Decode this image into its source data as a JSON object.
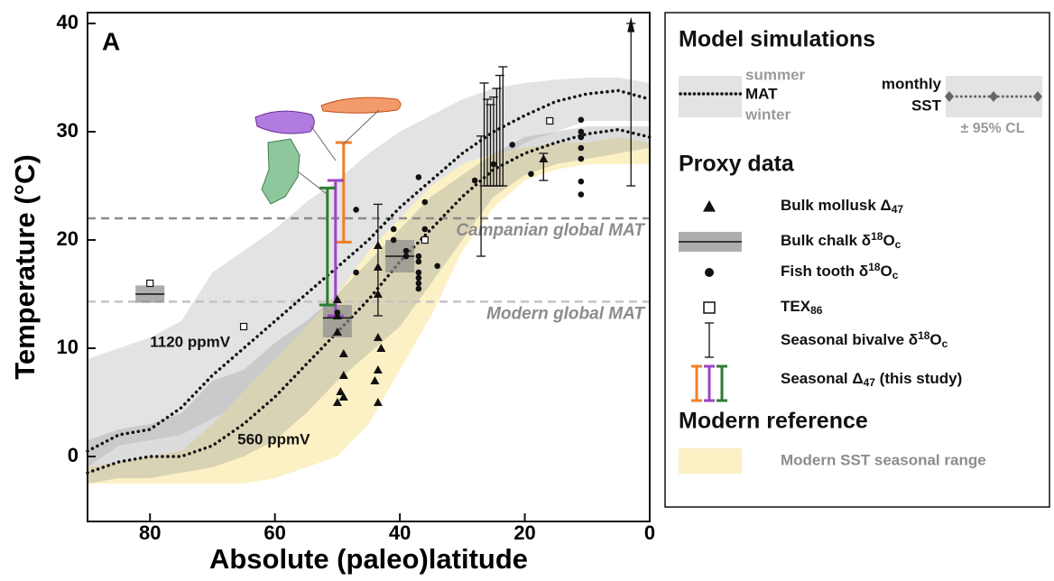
{
  "chart_data": {
    "type": "line",
    "panel_label": "A",
    "xlabel": "Absolute (paleo)latitude",
    "ylabel": "Temperature (°C)",
    "xlim": [
      90,
      0
    ],
    "ylim": [
      -6,
      41
    ],
    "xticks": [
      80,
      60,
      40,
      20,
      0
    ],
    "yticks": [
      0,
      10,
      20,
      30,
      40
    ],
    "bands": [
      {
        "color": "#e3e3e3",
        "opacity": 1,
        "x": [
          90,
          85,
          80,
          75,
          70,
          65,
          60,
          55,
          50,
          45,
          40,
          35,
          30,
          25,
          20,
          15,
          10,
          5,
          0
        ],
        "upper": [
          9,
          10,
          11,
          12.5,
          17,
          19,
          21,
          23.5,
          25.5,
          28,
          30,
          31.5,
          33,
          34,
          34.5,
          34.8,
          35,
          35,
          34.5
        ],
        "lower": [
          -1,
          1,
          1.5,
          2,
          3.5,
          5,
          7,
          8,
          10,
          13,
          16,
          20,
          24,
          27,
          29,
          30,
          31,
          31,
          31
        ]
      },
      {
        "name": "Modern SST seasonal range",
        "color": "#fbf1c4",
        "opacity": 1,
        "x": [
          90,
          85,
          80,
          75,
          70,
          65,
          60,
          55,
          50,
          45,
          40,
          35,
          30,
          25,
          20,
          15,
          10,
          5,
          0
        ],
        "upper": [
          -1,
          -0.5,
          0,
          0.5,
          3,
          6,
          9,
          12,
          15,
          19,
          22,
          25,
          27,
          28,
          28.5,
          29,
          29,
          29.5,
          29
        ],
        "lower": [
          -2.5,
          -2.5,
          -2.5,
          -2.5,
          -2.5,
          -2.5,
          -2,
          -1,
          0,
          3,
          8,
          13,
          19,
          23,
          25.5,
          26.5,
          27,
          27,
          27
        ]
      },
      {
        "color": "#9a9a9a",
        "opacity": 0.35,
        "x": [
          90,
          85,
          80,
          75,
          70,
          65,
          60,
          55,
          50,
          45,
          40,
          35,
          30,
          25,
          20,
          15,
          10,
          5,
          0
        ],
        "upper": [
          1.5,
          2.5,
          3,
          4,
          7,
          8,
          10.5,
          12.5,
          15,
          18,
          21,
          24,
          26,
          28,
          29.5,
          30,
          30.5,
          30.5,
          30.5
        ],
        "lower": [
          -2.5,
          -2,
          -2,
          -1.5,
          -1,
          0,
          1.5,
          4,
          7,
          9.5,
          12,
          16,
          20,
          24,
          26,
          27,
          27.5,
          28,
          28.5
        ]
      }
    ],
    "series": [
      {
        "label": "1120 ppmV",
        "label_at": [
          80,
          10.5
        ],
        "color": "#111",
        "x": [
          90,
          85,
          80,
          75,
          70,
          65,
          60,
          55,
          50,
          45,
          40,
          35,
          30,
          25,
          20,
          15,
          10,
          5,
          0
        ],
        "values": [
          0.5,
          2,
          2.5,
          4.5,
          7.5,
          10,
          12.5,
          15,
          17.5,
          20,
          23,
          25.5,
          28,
          30,
          31.5,
          32.8,
          33.5,
          33.8,
          33
        ]
      },
      {
        "label": "560 ppmV",
        "label_at": [
          66,
          1.5
        ],
        "color": "#111",
        "x": [
          90,
          85,
          80,
          75,
          70,
          65,
          60,
          55,
          50,
          45,
          40,
          35,
          30,
          25,
          20,
          15,
          10,
          5,
          0
        ],
        "values": [
          -1.5,
          -0.5,
          0,
          0,
          1,
          3,
          5.5,
          8.5,
          11.5,
          14.5,
          18,
          21,
          24,
          26.5,
          28,
          29,
          29.8,
          30.2,
          29.5
        ]
      }
    ],
    "reference_lines": [
      {
        "label": "Campanian global MAT",
        "value": 22,
        "color": "#8c8c8c"
      },
      {
        "label": "Modern global MAT",
        "value": 14.3,
        "color": "#c4c4c4"
      }
    ],
    "proxies": {
      "mollusk": {
        "name": [
          {
            "text": "Bulk mollusk Δ"
          },
          {
            "sub": "47"
          }
        ],
        "x": [
          50,
          50,
          50,
          49,
          49,
          49.5,
          49,
          50,
          43.5,
          43.5,
          43.5,
          43.5,
          43,
          43.5,
          44,
          43.5,
          17
        ],
        "values": [
          14.5,
          13,
          11.5,
          9.5,
          7.5,
          6,
          5.5,
          5,
          19.5,
          17.5,
          15,
          11,
          10,
          8,
          7,
          5,
          27.5
        ]
      },
      "chalk": {
        "name": [
          {
            "text": "Bulk chalk δ"
          },
          {
            "sup": "18"
          },
          {
            "text": "O"
          },
          {
            "sub": "c"
          }
        ],
        "x": [
          80,
          50,
          40
        ],
        "values": [
          15,
          12.8,
          18.5
        ],
        "low": [
          14.2,
          11,
          17
        ],
        "high": [
          15.8,
          14,
          20
        ]
      },
      "fish": {
        "name": [
          {
            "text": "Fish tooth δ"
          },
          {
            "sup": "18"
          },
          {
            "text": "O"
          },
          {
            "sub": "c"
          }
        ],
        "x": [
          47,
          47,
          50,
          41,
          41,
          39,
          39,
          37,
          37,
          37,
          37,
          37,
          37,
          37,
          36,
          36,
          34,
          22,
          19,
          11,
          11,
          11,
          11,
          11,
          11,
          11,
          25,
          28
        ],
        "values": [
          22.8,
          17,
          13.3,
          21,
          20,
          19,
          18.5,
          25.8,
          18.5,
          18,
          17,
          16.5,
          16,
          15.5,
          23.5,
          21,
          17.6,
          28.8,
          26.1,
          31.1,
          30,
          29.5,
          28.5,
          27.5,
          25.4,
          24.2,
          27,
          25.5
        ]
      },
      "tex": {
        "name": [
          {
            "text": "TEX"
          },
          {
            "sub": "86"
          }
        ],
        "x": [
          80,
          65,
          36,
          16
        ],
        "values": [
          16,
          12,
          20,
          31
        ]
      },
      "bivalve": {
        "name": [
          {
            "text": "Seasonal bivalve δ"
          },
          {
            "sup": "18"
          },
          {
            "text": "O"
          },
          {
            "sub": "c"
          }
        ],
        "x": [
          43.5,
          27,
          26.5,
          26,
          25.5,
          25,
          24.5,
          24,
          23.5,
          17,
          3
        ],
        "low": [
          13,
          18.5,
          25,
          25,
          25,
          25,
          25,
          25,
          25,
          25.5,
          25
        ],
        "high": [
          23.3,
          29.6,
          34.5,
          33,
          32.5,
          33.2,
          34,
          35.2,
          36,
          28,
          40
        ]
      },
      "seasonal_delta47": {
        "name": [
          {
            "text": "Seasonal Δ"
          },
          {
            "sub": "47"
          },
          {
            "text": " (this study)"
          }
        ],
        "series": [
          {
            "color": "#f07f2b",
            "x": 49,
            "low": 19.8,
            "high": 29
          },
          {
            "color": "#9b46c4",
            "x": 50.3,
            "low": 13,
            "high": 25.5
          },
          {
            "color": "#2e7d32",
            "x": 51.6,
            "low": 14,
            "high": 24.8
          }
        ]
      }
    },
    "legend": {
      "model_heading": "Model simulations",
      "summer": "summer",
      "mat": "MAT",
      "winter": "winter",
      "monthly": "monthly",
      "sst": "SST",
      "cl": "± 95% CL",
      "proxy_heading": "Proxy data",
      "modern_heading": "Modern reference"
    }
  }
}
